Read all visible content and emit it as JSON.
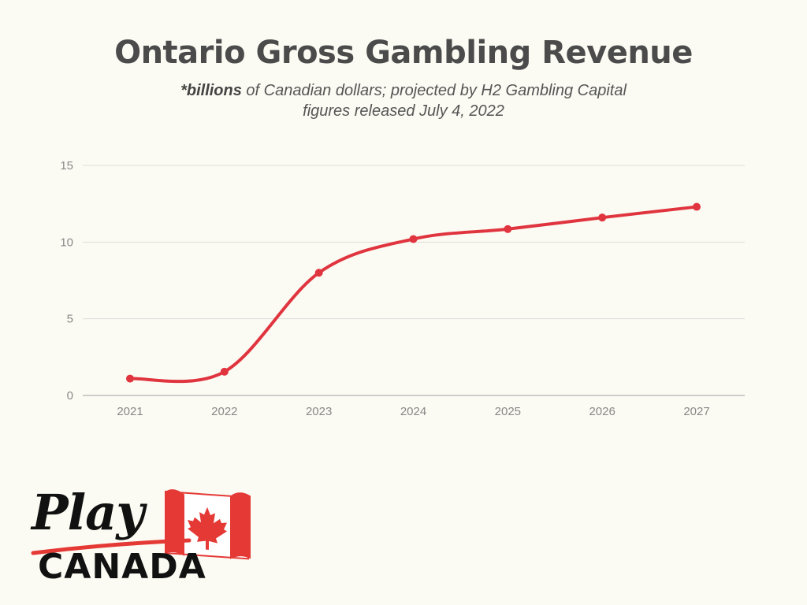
{
  "header": {
    "title": "Ontario Gross Gambling Revenue",
    "subtitle_bold": "*billions",
    "subtitle_rest": " of Canadian dollars; projected by H2 Gambling Capital",
    "subtitle_line2": "figures released July 4, 2022"
  },
  "logo": {
    "top": "Play",
    "bottom": "CANADA"
  },
  "colors": {
    "line": "#e0343f",
    "grid": "#dddddd",
    "axis": "#bdbdbd",
    "background": "#fbfbf3"
  },
  "chart_data": {
    "type": "line",
    "title": "Ontario Gross Gambling Revenue",
    "subtitle": "*billions of Canadian dollars; projected by H2 Gambling Capital figures released July 4, 2022",
    "xlabel": "",
    "ylabel": "",
    "x": [
      "2021",
      "2022",
      "2023",
      "2024",
      "2025",
      "2026",
      "2027"
    ],
    "series": [
      {
        "values": [
          1.1,
          1.55,
          8.0,
          10.2,
          10.85,
          11.6,
          12.3
        ]
      }
    ],
    "ylim": [
      0,
      15
    ],
    "yticks": [
      "0",
      "5",
      "10",
      "15"
    ],
    "grid": true,
    "legend": "none",
    "line_style": "smooth"
  }
}
